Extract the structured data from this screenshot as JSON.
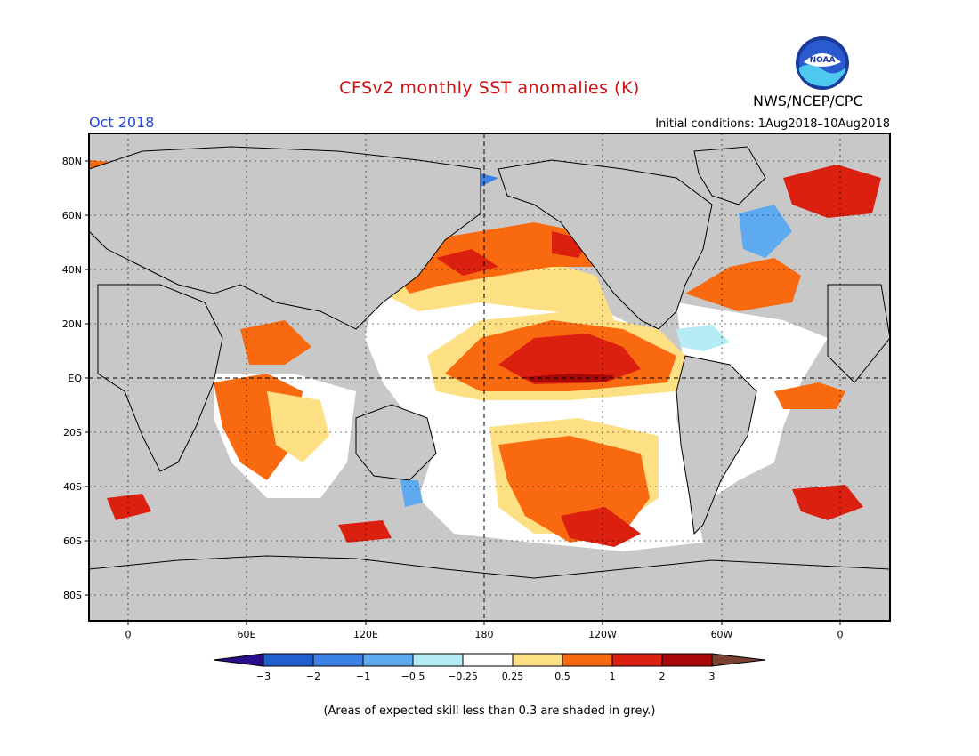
{
  "header": {
    "title": "CFSv2 monthly SST anomalies (K)",
    "period": "Oct 2018",
    "agency": "NWS/NCEP/CPC",
    "initial_conditions": "Initial conditions: 1Aug2018–10Aug2018",
    "logo_text": "NOAA"
  },
  "map": {
    "lat_labels": [
      "80N",
      "60N",
      "40N",
      "20N",
      "EQ",
      "20S",
      "40S",
      "60S",
      "80S"
    ],
    "lon_labels": [
      "0",
      "60E",
      "120E",
      "180",
      "120W",
      "60W",
      "0"
    ],
    "colors": {
      "land": "#c8c8c8",
      "skill_mask": "#c8c8c8",
      "ocean_neutral": "#ffffff"
    }
  },
  "colorbar": {
    "labels": [
      "−3",
      "−2",
      "−1",
      "−0.5",
      "−0.25",
      "0.25",
      "0.5",
      "1",
      "2",
      "3"
    ],
    "colors": [
      "#2a0e8c",
      "#1f5fd0",
      "#3a82e6",
      "#5eaaf0",
      "#b6ecf6",
      "#ffffff",
      "#fde083",
      "#f96a10",
      "#dc2010",
      "#a80808",
      "#7a4030"
    ]
  },
  "footer": {
    "note": "(Areas of expected skill less than 0.3 are shaded in grey.)"
  }
}
